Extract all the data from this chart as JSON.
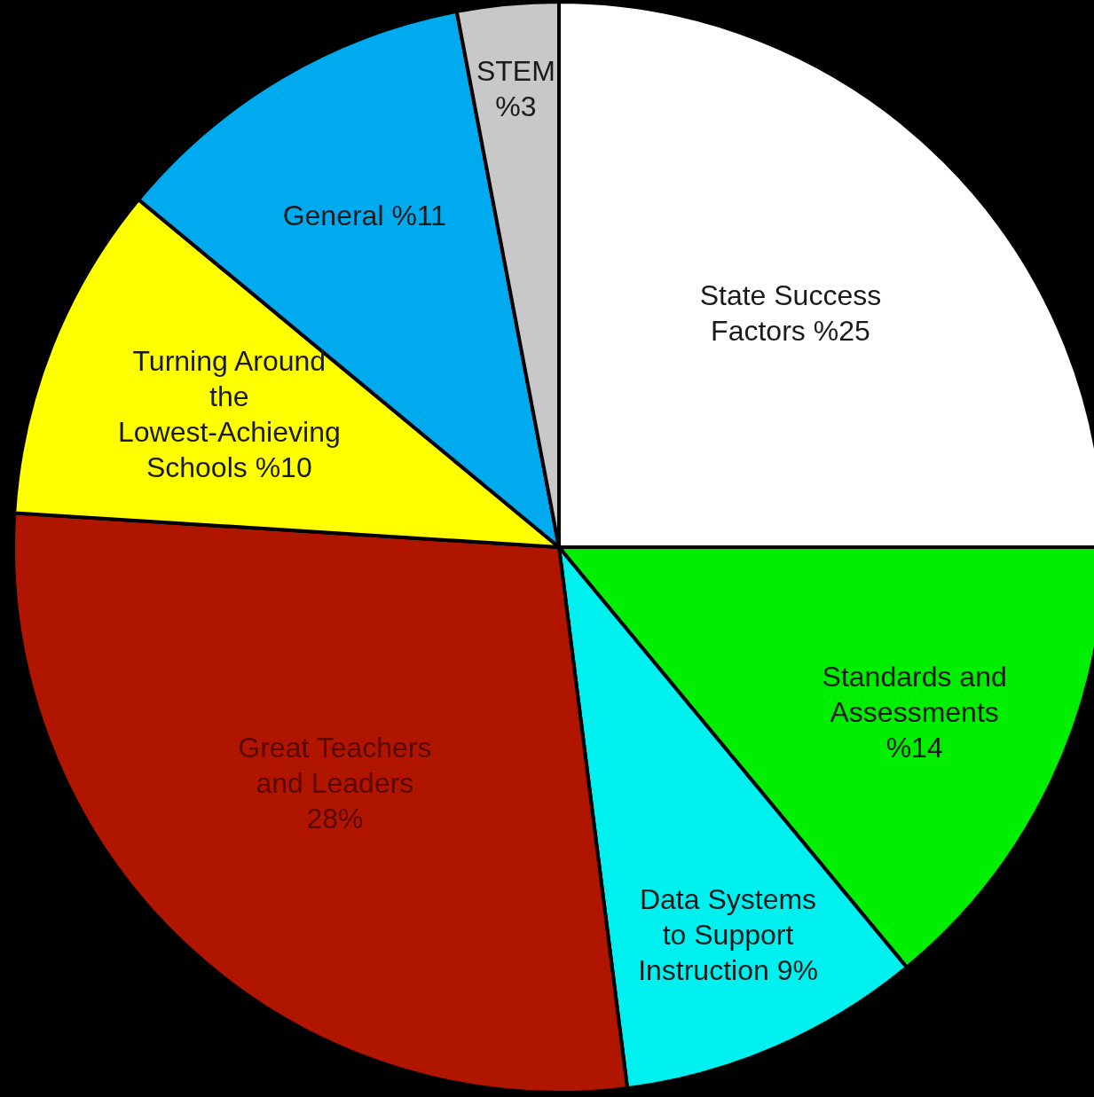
{
  "chart_data": {
    "type": "pie",
    "categories": [
      "State Success Factors",
      "Standards and Assessments",
      "Data Systems to Support Instruction",
      "Great Teachers and Leaders",
      "Turning Around the Lowest-Achieving Schools",
      "General",
      "STEM"
    ],
    "values": [
      25,
      14,
      9,
      28,
      10,
      11,
      3
    ],
    "value_labels": [
      "%25",
      "%14",
      "9%",
      "28%",
      "%10",
      "%11",
      "%3"
    ],
    "colors": [
      "#ffffff",
      "#00ee00",
      "#00f0f0",
      "#b01500",
      "#ffff00",
      "#00aaee",
      "#c8c8c8"
    ],
    "legend": false
  }
}
